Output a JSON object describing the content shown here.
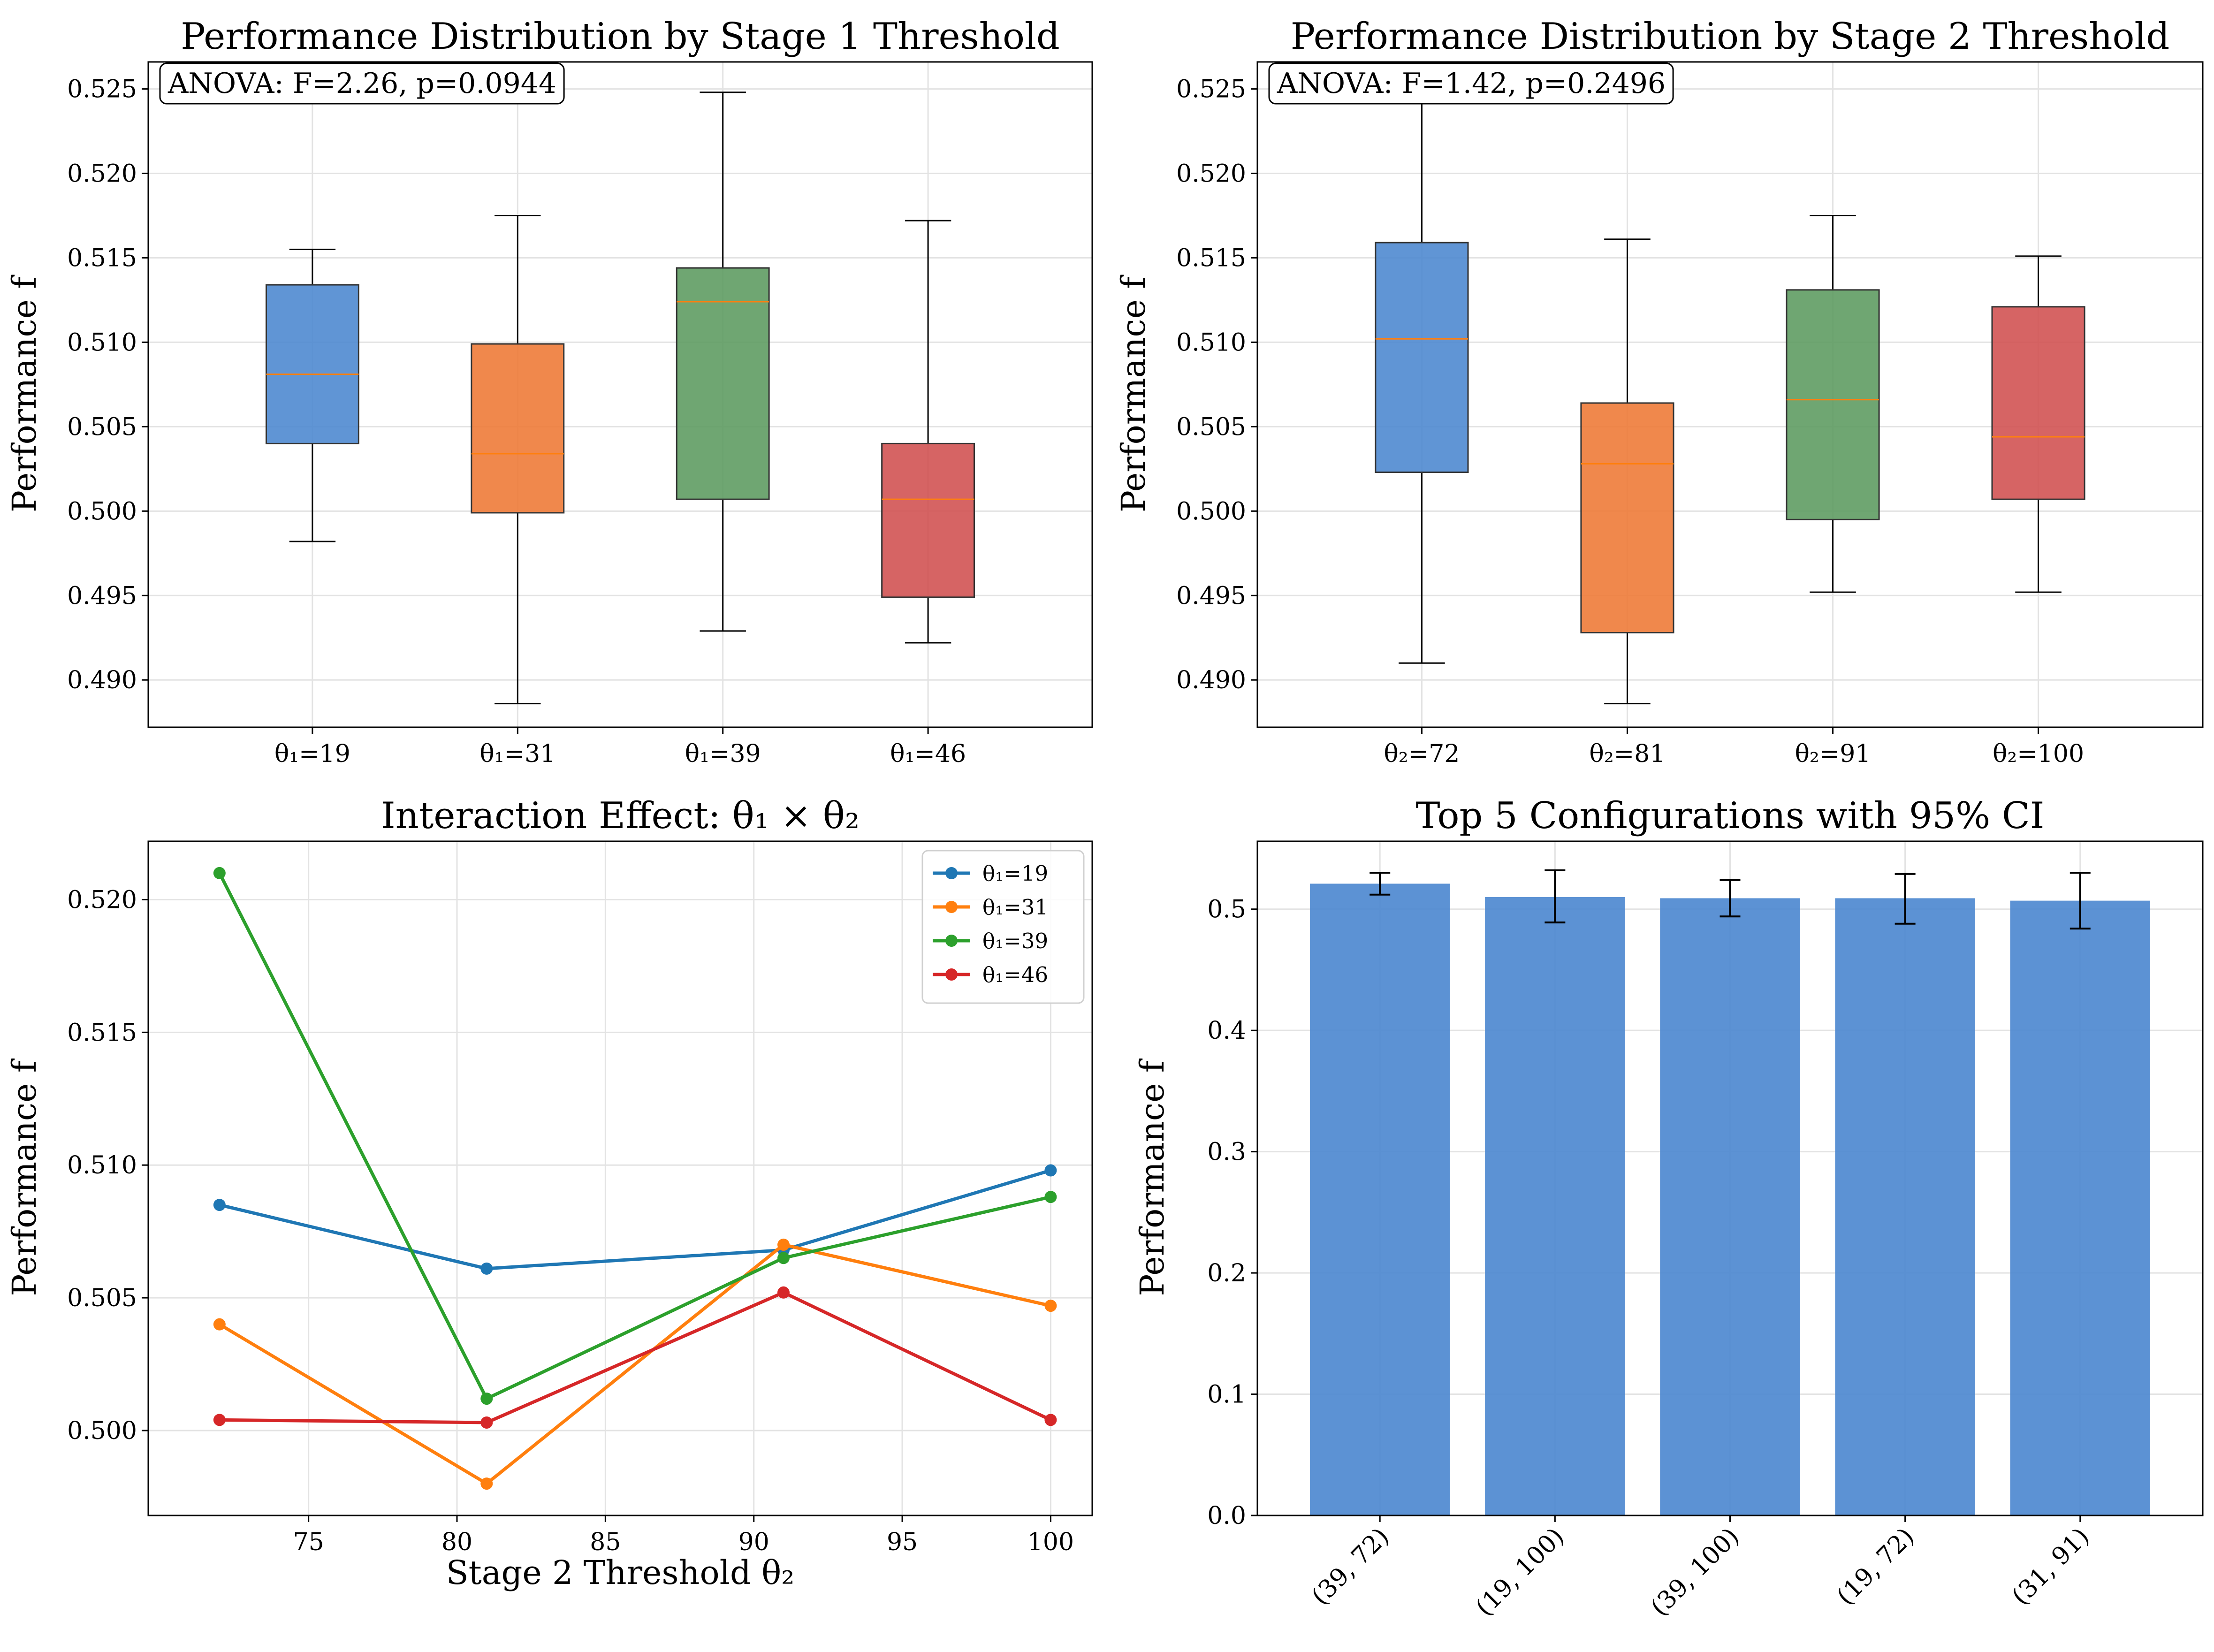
{
  "chart_data": [
    {
      "type": "box",
      "title": "Performance Distribution by Stage 1 Threshold",
      "ylabel": "Performance f",
      "xlabel": "",
      "ylim": [
        0.4872,
        0.5266
      ],
      "yticks": [
        0.49,
        0.495,
        0.5,
        0.505,
        0.51,
        0.515,
        0.52,
        0.525
      ],
      "grid": true,
      "annotation": "ANOVA: F=2.26, p=0.0944",
      "categories": [
        "θ₁=19",
        "θ₁=31",
        "θ₁=39",
        "θ₁=46"
      ],
      "boxes": [
        {
          "whisker_low": 0.4982,
          "q1": 0.504,
          "median": 0.5081,
          "q3": 0.5134,
          "whisker_high": 0.5155,
          "color": "#4a86cf"
        },
        {
          "whisker_low": 0.4886,
          "q1": 0.4999,
          "median": 0.5034,
          "q3": 0.5099,
          "whisker_high": 0.5175,
          "color": "#ee7733"
        },
        {
          "whisker_low": 0.4929,
          "q1": 0.5007,
          "median": 0.5124,
          "q3": 0.5144,
          "whisker_high": 0.5248,
          "color": "#5b9a5e"
        },
        {
          "whisker_low": 0.4922,
          "q1": 0.4949,
          "median": 0.5007,
          "q3": 0.504,
          "whisker_high": 0.5172,
          "color": "#d04e4f"
        }
      ]
    },
    {
      "type": "box",
      "title": "Performance Distribution by Stage 2 Threshold",
      "ylabel": "Performance f",
      "xlabel": "",
      "ylim": [
        0.4872,
        0.5266
      ],
      "yticks": [
        0.49,
        0.495,
        0.5,
        0.505,
        0.51,
        0.515,
        0.52,
        0.525
      ],
      "grid": true,
      "annotation": "ANOVA: F=1.42, p=0.2496",
      "categories": [
        "θ₂=72",
        "θ₂=81",
        "θ₂=91",
        "θ₂=100"
      ],
      "boxes": [
        {
          "whisker_low": 0.491,
          "q1": 0.5023,
          "median": 0.5102,
          "q3": 0.5159,
          "whisker_high": 0.5248,
          "color": "#4a86cf"
        },
        {
          "whisker_low": 0.4886,
          "q1": 0.4928,
          "median": 0.5028,
          "q3": 0.5064,
          "whisker_high": 0.5161,
          "color": "#ee7733"
        },
        {
          "whisker_low": 0.4952,
          "q1": 0.4995,
          "median": 0.5066,
          "q3": 0.5131,
          "whisker_high": 0.5175,
          "color": "#5b9a5e"
        },
        {
          "whisker_low": 0.4952,
          "q1": 0.5007,
          "median": 0.5044,
          "q3": 0.5121,
          "whisker_high": 0.5151,
          "color": "#d04e4f"
        }
      ]
    },
    {
      "type": "line",
      "title": "Interaction Effect: θ₁ × θ₂",
      "xlabel": "Stage 2 Threshold θ₂",
      "ylabel": "Performance f",
      "xlim": [
        69.6,
        101.4
      ],
      "ylim": [
        0.4968,
        0.5222
      ],
      "xticks": [
        75,
        80,
        85,
        90,
        95,
        100
      ],
      "yticks": [
        0.5,
        0.505,
        0.51,
        0.515,
        0.52
      ],
      "ytick_labels": [
        "0.500",
        "0.505",
        "0.510",
        "0.515",
        "0.520"
      ],
      "grid": true,
      "legend_position": "top-right",
      "x": [
        72,
        81,
        91,
        100
      ],
      "series": [
        {
          "name": "θ₁=19",
          "color": "#1f77b4",
          "values": [
            0.5085,
            0.5061,
            0.5068,
            0.5098
          ]
        },
        {
          "name": "θ₁=31",
          "color": "#ff7f0e",
          "values": [
            0.504,
            0.498,
            0.507,
            0.5047
          ]
        },
        {
          "name": "θ₁=39",
          "color": "#2ca02c",
          "values": [
            0.521,
            0.5012,
            0.5065,
            0.5088
          ]
        },
        {
          "name": "θ₁=46",
          "color": "#d62728",
          "values": [
            0.5004,
            0.5003,
            0.5052,
            0.5004
          ]
        }
      ]
    },
    {
      "type": "bar",
      "title": "Top 5 Configurations with 95% CI",
      "xlabel": "",
      "ylabel": "Performance f",
      "ylim": [
        0,
        0.556
      ],
      "yticks": [
        0.0,
        0.1,
        0.2,
        0.3,
        0.4,
        0.5
      ],
      "ytick_labels": [
        "0.0",
        "0.1",
        "0.2",
        "0.3",
        "0.4",
        "0.5"
      ],
      "grid": true,
      "bar_color": "#4a86cf",
      "categories": [
        "(39, 72)",
        "(19, 100)",
        "(39, 100)",
        "(19, 72)",
        "(31, 91)"
      ],
      "values": [
        0.521,
        0.51,
        0.509,
        0.509,
        0.507
      ],
      "ci_low": [
        0.512,
        0.489,
        0.494,
        0.488,
        0.484
      ],
      "ci_high": [
        0.53,
        0.532,
        0.524,
        0.529,
        0.53
      ]
    }
  ]
}
